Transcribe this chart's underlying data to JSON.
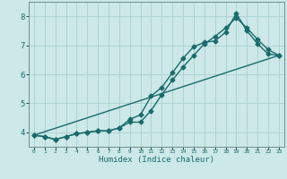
{
  "xlabel": "Humidex (Indice chaleur)",
  "bg_color": "#cce8e8",
  "line_color": "#1a6b6b",
  "grid_color": "#aad0d0",
  "xlim": [
    -0.5,
    23.5
  ],
  "ylim": [
    3.5,
    8.5
  ],
  "xticks": [
    0,
    1,
    2,
    3,
    4,
    5,
    6,
    7,
    8,
    9,
    10,
    11,
    12,
    13,
    14,
    15,
    16,
    17,
    18,
    19,
    20,
    21,
    22,
    23
  ],
  "yticks": [
    4,
    5,
    6,
    7,
    8
  ],
  "line1_x": [
    0,
    1,
    2,
    3,
    4,
    5,
    6,
    7,
    8,
    9,
    10,
    11,
    12,
    13,
    14,
    15,
    16,
    17,
    18,
    19,
    20,
    21,
    22,
    23
  ],
  "line1_y": [
    3.9,
    3.85,
    3.75,
    3.85,
    3.95,
    4.0,
    4.05,
    4.05,
    4.15,
    4.45,
    4.6,
    5.25,
    5.55,
    6.05,
    6.55,
    6.95,
    7.1,
    7.15,
    7.45,
    8.1,
    7.5,
    7.05,
    6.7,
    6.65
  ],
  "line2_x": [
    0,
    1,
    2,
    3,
    4,
    5,
    6,
    7,
    8,
    9,
    10,
    11,
    12,
    13,
    14,
    15,
    16,
    17,
    18,
    19,
    20,
    21,
    22,
    23
  ],
  "line2_y": [
    3.9,
    3.85,
    3.75,
    3.85,
    3.95,
    4.0,
    4.05,
    4.05,
    4.15,
    4.35,
    4.35,
    4.75,
    5.3,
    5.8,
    6.25,
    6.65,
    7.05,
    7.3,
    7.6,
    7.95,
    7.6,
    7.2,
    6.85,
    6.65
  ],
  "line3_x": [
    0,
    23
  ],
  "line3_y": [
    3.9,
    6.65
  ],
  "marker_size": 2.5,
  "line_width": 1.0
}
